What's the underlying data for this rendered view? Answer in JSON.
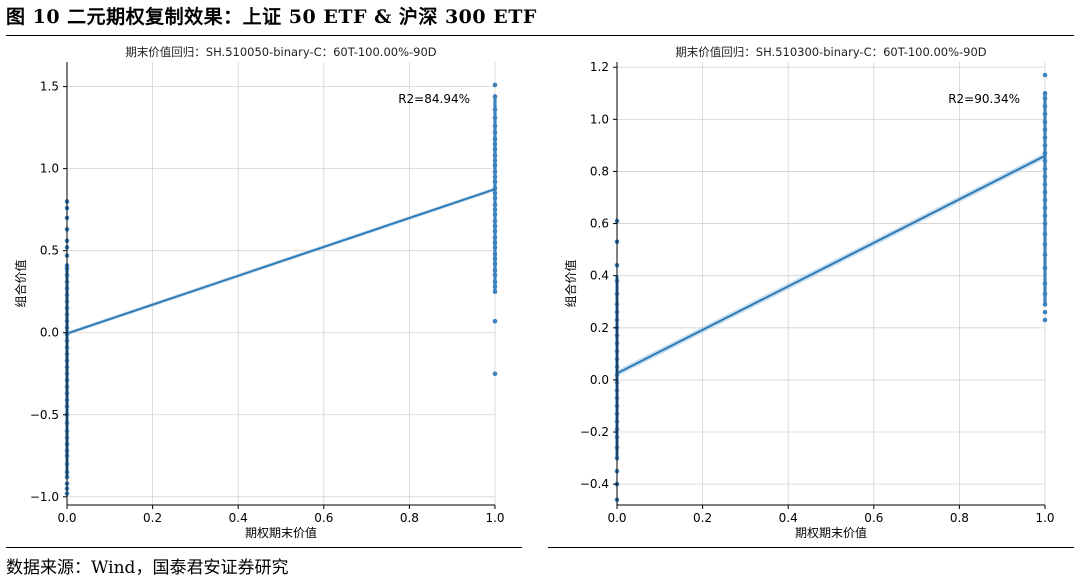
{
  "figure_title": "图 10 二元期权复制效果：上证 50 ETF & 沪深 300 ETF",
  "source_text": "数据来源：Wind，国泰君安证券研究",
  "colors": {
    "line": "#2e7bb6",
    "point": "#3b82bf",
    "band": "#9ec4e4",
    "grid": "#d3d3d3",
    "axis": "#000000"
  },
  "chart_data": [
    {
      "type": "scatter",
      "title": "期末价值回归：SH.510050-binary-C：60T-100.00%-90D",
      "xlabel": "期权期末价值",
      "ylabel": "组合价值",
      "xlim": [
        0.0,
        1.0
      ],
      "ylim": [
        -1.05,
        1.65
      ],
      "xticks": [
        0.0,
        0.2,
        0.4,
        0.6,
        0.8,
        1.0
      ],
      "xtick_labels": [
        "0.0",
        "0.2",
        "0.4",
        "0.6",
        "0.8",
        "1.0"
      ],
      "yticks": [
        -1.0,
        -0.5,
        0.0,
        0.5,
        1.0,
        1.5
      ],
      "ytick_labels": [
        "−1.0",
        "−0.5",
        "0.0",
        "0.5",
        "1.0",
        "1.5"
      ],
      "grid": true,
      "annotation": "R2=84.94%",
      "fit_line": {
        "x": [
          0.0,
          1.0
        ],
        "y": [
          -0.005,
          0.875
        ]
      },
      "x0_points": [
        -0.98,
        -0.95,
        -0.92,
        -0.88,
        -0.85,
        -0.8,
        -0.75,
        -0.72,
        -0.68,
        -0.64,
        -0.6,
        -0.55,
        -0.5,
        -0.45,
        -0.41,
        -0.37,
        -0.33,
        -0.29,
        -0.25,
        -0.21,
        -0.17,
        -0.13,
        -0.09,
        -0.05,
        -0.01,
        0.03,
        0.07,
        0.11,
        0.15,
        0.19,
        0.23,
        0.27,
        0.31,
        0.35,
        0.39,
        0.41,
        0.47,
        0.52,
        0.56,
        0.63,
        0.7,
        0.76,
        0.8
      ],
      "x1_points": [
        -0.25,
        0.07,
        0.25,
        0.28,
        0.31,
        0.35,
        0.38,
        0.42,
        0.45,
        0.48,
        0.52,
        0.55,
        0.58,
        0.62,
        0.65,
        0.68,
        0.72,
        0.75,
        0.78,
        0.82,
        0.85,
        0.88,
        0.92,
        0.95,
        0.98,
        1.02,
        1.05,
        1.08,
        1.12,
        1.15,
        1.18,
        1.22,
        1.26,
        1.31,
        1.36,
        1.44,
        1.51
      ]
    },
    {
      "type": "scatter",
      "title": "期末价值回归：SH.510300-binary-C：60T-100.00%-90D",
      "xlabel": "期权期末价值",
      "ylabel": "组合价值",
      "xlim": [
        0.0,
        1.0
      ],
      "ylim": [
        -0.48,
        1.22
      ],
      "xticks": [
        0.0,
        0.2,
        0.4,
        0.6,
        0.8,
        1.0
      ],
      "xtick_labels": [
        "0.0",
        "0.2",
        "0.4",
        "0.6",
        "0.8",
        "1.0"
      ],
      "yticks": [
        -0.4,
        -0.2,
        0.0,
        0.2,
        0.4,
        0.6,
        0.8,
        1.0,
        1.2
      ],
      "ytick_labels": [
        "−0.4",
        "−0.2",
        "0.0",
        "0.2",
        "0.4",
        "0.6",
        "0.8",
        "1.0",
        "1.2"
      ],
      "grid": true,
      "annotation": "R2=90.34%",
      "fit_line": {
        "x": [
          0.0,
          1.0
        ],
        "y": [
          0.025,
          0.86
        ]
      },
      "x0_points": [
        -0.46,
        -0.4,
        -0.35,
        -0.3,
        -0.26,
        -0.22,
        -0.19,
        -0.16,
        -0.13,
        -0.1,
        -0.07,
        -0.04,
        -0.01,
        0.02,
        0.05,
        0.08,
        0.11,
        0.14,
        0.17,
        0.2,
        0.23,
        0.26,
        0.29,
        0.33,
        0.38,
        0.44,
        0.53,
        0.61
      ],
      "x1_points": [
        0.23,
        0.26,
        0.29,
        0.33,
        0.37,
        0.43,
        0.48,
        0.52,
        0.56,
        0.6,
        0.63,
        0.66,
        0.69,
        0.72,
        0.75,
        0.78,
        0.81,
        0.84,
        0.87,
        0.9,
        0.93,
        0.96,
        0.99,
        1.02,
        1.05,
        1.08,
        1.1,
        1.17
      ]
    }
  ]
}
